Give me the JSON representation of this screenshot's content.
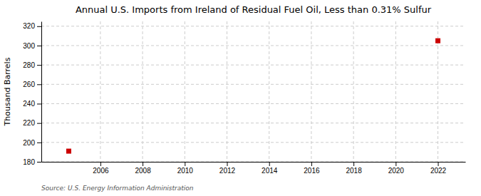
{
  "chart_data": {
    "type": "scatter",
    "title": "Annual U.S. Imports from Ireland of Residual Fuel Oil, Less than 0.31% Sulfur",
    "ylabel": "Thousand Barrels",
    "source": "Source: U.S. Energy Information Administration",
    "x": [
      2004.5,
      2022
    ],
    "values": [
      191,
      305
    ],
    "color": "#cc0000",
    "marker": "square",
    "xlim": [
      2003.2,
      2023.3
    ],
    "ylim": [
      180,
      325
    ],
    "xticks": [
      2006,
      2008,
      2010,
      2012,
      2014,
      2016,
      2018,
      2020,
      2022
    ],
    "yticks": [
      180,
      200,
      220,
      240,
      260,
      280,
      300,
      320
    ],
    "grid": true
  }
}
